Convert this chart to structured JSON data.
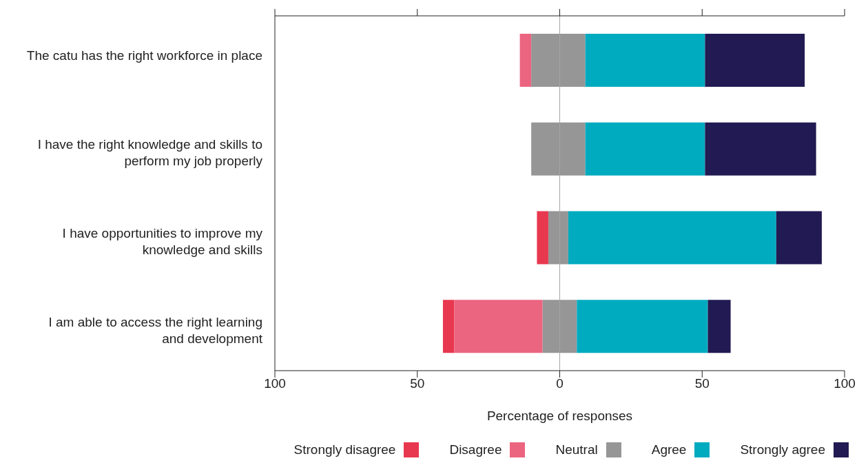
{
  "chart_data": {
    "type": "bar",
    "orientation": "horizontal",
    "xlabel": "Percentage of responses",
    "categories": [
      "The catu has the right workforce in place",
      "I have the right knowledge and skills to perform my job properly",
      "I have opportunities to improve my knowledge and skills",
      "I am able to access the right learning and development"
    ],
    "series": [
      {
        "name": "Strongly disagree",
        "color": "#e8384f",
        "values": [
          null,
          null,
          4,
          4
        ],
        "base": [
          null,
          null,
          -8,
          -41
        ]
      },
      {
        "name": "Disagree",
        "color": "#ec6580",
        "values": [
          4,
          null,
          null,
          31
        ],
        "base": [
          -14,
          null,
          null,
          -37
        ]
      },
      {
        "name": "Neutral",
        "color": "#969696",
        "values": [
          19,
          19,
          7,
          12
        ],
        "base": [
          -10,
          -10,
          -4,
          -6
        ]
      },
      {
        "name": "Agree",
        "color": "#00abbf",
        "values": [
          42,
          42,
          73,
          46
        ],
        "base": [
          9,
          9,
          3,
          6
        ]
      },
      {
        "name": "Strongly agree",
        "color": "#221a52",
        "values": [
          35,
          39,
          16,
          8
        ],
        "base": [
          51,
          51,
          76,
          52
        ]
      }
    ],
    "xlim": [
      -100,
      100
    ],
    "xticks": [
      {
        "value": -100,
        "label": "100"
      },
      {
        "value": -50,
        "label": "50"
      },
      0,
      50,
      100
    ],
    "ref_lines": [
      {
        "axis": "x",
        "value": 0,
        "color": "#a6a6a6"
      }
    ],
    "legend": "bottom"
  }
}
